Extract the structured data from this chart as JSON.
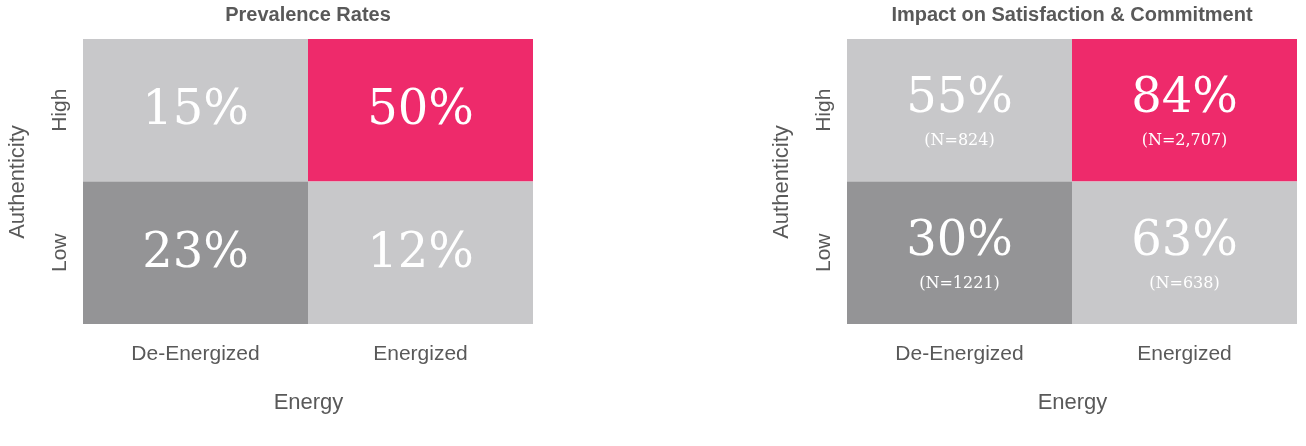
{
  "chart_data": [
    {
      "type": "heatmap",
      "title": "Prevalence Rates",
      "xlabel": "Energy",
      "ylabel": "Authenticity",
      "categories": [
        "De-Energized",
        "Energized"
      ],
      "y_categories": [
        "High",
        "Low"
      ],
      "cells": [
        [
          15,
          50
        ],
        [
          23,
          12
        ]
      ],
      "cell_labels": [
        [
          "15%",
          "50%"
        ],
        [
          "23%",
          "12%"
        ]
      ],
      "colors": [
        [
          "#c8c8ca",
          "#ee2a6b"
        ],
        [
          "#949496",
          "#c8c8ca"
        ]
      ],
      "grid": false
    },
    {
      "type": "heatmap",
      "title": "Impact on Satisfaction & Commitment",
      "xlabel": "Energy",
      "ylabel": "Authenticity",
      "categories": [
        "De-Energized",
        "Energized"
      ],
      "y_categories": [
        "High",
        "Low"
      ],
      "cells": [
        [
          55,
          84
        ],
        [
          30,
          63
        ]
      ],
      "cell_labels": [
        [
          "55%",
          "84%"
        ],
        [
          "30%",
          "63%"
        ]
      ],
      "colors": [
        [
          "#c8c8ca",
          "#ee2a6b"
        ],
        [
          "#949496",
          "#c8c8ca"
        ]
      ],
      "annotations": [
        "(N=824)",
        "(N=2,707)",
        "(N=1221)",
        "(N=638)"
      ],
      "grid": false
    }
  ]
}
